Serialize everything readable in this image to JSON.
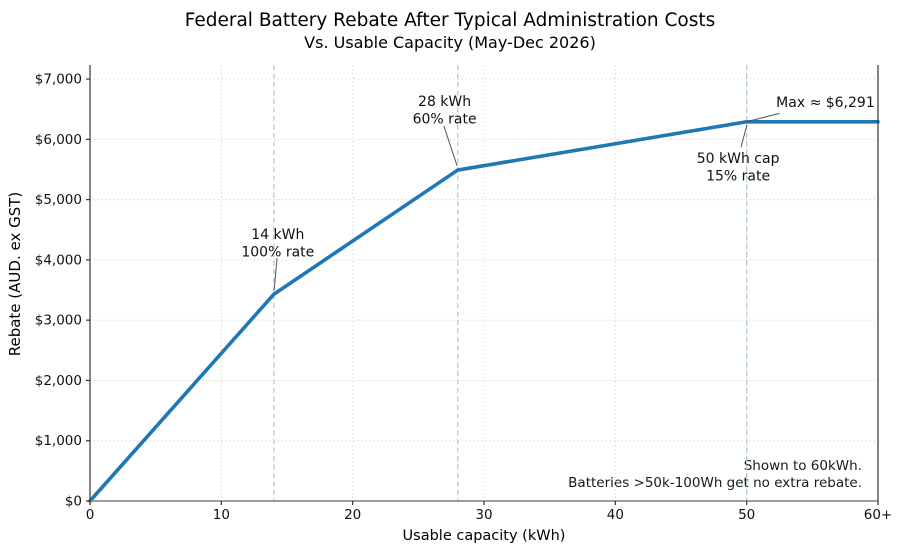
{
  "figure": {
    "title": "Federal Battery Rebate After Typical Administration Costs",
    "subtitle": "Vs. Usable Capacity (May-Dec 2026)"
  },
  "chart_data": {
    "type": "line",
    "title": "Federal Battery Rebate After Typical Administration Costs",
    "subtitle": "Vs. Usable Capacity (May-Dec 2026)",
    "xlabel": "Usable capacity (kWh)",
    "ylabel": "Rebate (AUD. ex GST)",
    "xlim": [
      0,
      60
    ],
    "ylim": [
      0,
      7233
    ],
    "grid": {
      "on": true,
      "style": "dotted",
      "color": "#c8c8c8",
      "h_values": [
        1000,
        2000,
        3000,
        4000,
        5000,
        6000,
        7000
      ],
      "v_values": [
        10,
        20,
        30,
        40,
        50
      ]
    },
    "x_ticks": [
      {
        "v": 0,
        "label": "0"
      },
      {
        "v": 10,
        "label": "10"
      },
      {
        "v": 20,
        "label": "20"
      },
      {
        "v": 30,
        "label": "30"
      },
      {
        "v": 40,
        "label": "40"
      },
      {
        "v": 50,
        "label": "50"
      },
      {
        "v": 60,
        "label": "60+"
      }
    ],
    "y_ticks": [
      {
        "v": 0,
        "label": "$0"
      },
      {
        "v": 1000,
        "label": "$1,000"
      },
      {
        "v": 2000,
        "label": "$2,000"
      },
      {
        "v": 3000,
        "label": "$3,000"
      },
      {
        "v": 4000,
        "label": "$4,000"
      },
      {
        "v": 5000,
        "label": "$5,000"
      },
      {
        "v": 6000,
        "label": "$6,000"
      },
      {
        "v": 7000,
        "label": "$7,000"
      }
    ],
    "reference_lines": {
      "x_values": [
        14,
        28,
        50
      ],
      "style": "dashed",
      "color": "#aecbe0"
    },
    "series": [
      {
        "name": "rebate-curve",
        "color": "#1f77b4",
        "width": 3.6,
        "points": [
          [
            0,
            0
          ],
          [
            14,
            3430
          ],
          [
            28,
            5490
          ],
          [
            50,
            6291
          ],
          [
            60,
            6291
          ]
        ]
      }
    ],
    "annotations": [
      {
        "name": "annotation-14kwh",
        "lines": [
          "14 kWh",
          "100% rate"
        ],
        "text_x": 14.3,
        "text_y": 4310,
        "leader": [
          14.24,
          4030,
          14.02,
          3490
        ]
      },
      {
        "name": "annotation-28kwh",
        "lines": [
          "28 kWh",
          "60% rate"
        ],
        "text_x": 27.0,
        "text_y": 6520,
        "leader": [
          26.95,
          6220,
          27.95,
          5560
        ]
      },
      {
        "name": "annotation-max",
        "lines": [
          "Max ≈ $6,291"
        ],
        "text_x": 56.0,
        "text_y": 6620,
        "leader": [
          52.5,
          6430,
          49.95,
          6290
        ]
      },
      {
        "name": "annotation-50kwh-cap",
        "lines": [
          "50 kWh cap",
          "15% rate"
        ],
        "text_x": 49.35,
        "text_y": 5570,
        "leader": [
          49.57,
          5870,
          50.02,
          6240
        ]
      }
    ],
    "note_lines": [
      "Shown to 60kWh.",
      "Batteries >50k-100Wh get no extra rebate."
    ],
    "legend": "none"
  },
  "colors": {
    "line": "#1f77b4",
    "reference_line": "#aecbe0",
    "grid": "#c8c8c8",
    "spine_dark": "#333333",
    "spine_bottom": "#7f7f7f",
    "leader": "#555555",
    "text": "#111111"
  }
}
